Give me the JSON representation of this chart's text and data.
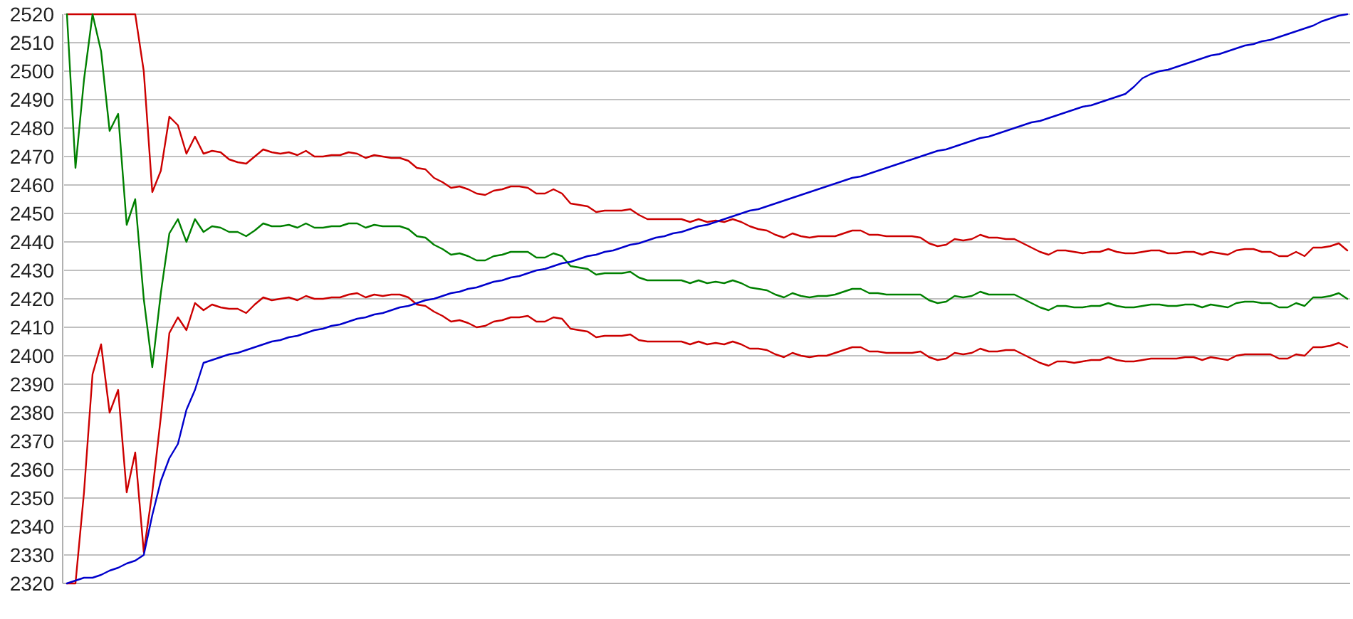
{
  "chart_data": {
    "type": "line",
    "categories": [
      null,
      null,
      null,
      null,
      null,
      null,
      null,
      null,
      null,
      null,
      null,
      null,
      null,
      null,
      null,
      null,
      null,
      null,
      null,
      null,
      null,
      null,
      null,
      null,
      null,
      null,
      null,
      null,
      null,
      null,
      null,
      null,
      null,
      null,
      null,
      null,
      null,
      null,
      null,
      null,
      null,
      null,
      null,
      null,
      null,
      null,
      null,
      null,
      null,
      null,
      null,
      null,
      null,
      null,
      null,
      null,
      null,
      null,
      null,
      null,
      null,
      null,
      null,
      null,
      null,
      null,
      null,
      null,
      null,
      null,
      null,
      null,
      null,
      null,
      null,
      null,
      null,
      null,
      null,
      null,
      null,
      null,
      null,
      null,
      null,
      null,
      null,
      null,
      null,
      null,
      null,
      null,
      null,
      null,
      null,
      null,
      null,
      null,
      null,
      null,
      null,
      null,
      null,
      null,
      null,
      null,
      null,
      null,
      null,
      null,
      null,
      null,
      null,
      null,
      null,
      null,
      null,
      null,
      null,
      null,
      null,
      null,
      null,
      null,
      null,
      null,
      null,
      null,
      null,
      null,
      null,
      null,
      null,
      null,
      null,
      null,
      null,
      null,
      null,
      null,
      null,
      null,
      null,
      null,
      null,
      null,
      null,
      null,
      null,
      null,
      null
    ],
    "series": [
      {
        "color": "#cc0000",
        "values": [
          2520,
          2520,
          2520,
          2520,
          2520,
          2520,
          2520,
          2520,
          2520,
          2500,
          2457.5,
          2465,
          2484,
          2481,
          2471,
          2477,
          2471,
          2472,
          2471.5,
          2469,
          2468,
          2467.5,
          2470,
          2472.5,
          2471.5,
          2471,
          2471.5,
          2470.5,
          2472,
          2470,
          2470,
          2470.5,
          2470.5,
          2471.5,
          2471,
          2469.5,
          2470.5,
          2470,
          2469.5,
          2469.5,
          2468.5,
          2466,
          2465.5,
          2462.5,
          2461,
          2459,
          2459.5,
          2458.5,
          2457,
          2456.5,
          2458,
          2458.5,
          2459.5,
          2459.5,
          2459,
          2457,
          2457,
          2458.5,
          2457,
          2453.5,
          2453,
          2452.5,
          2450.5,
          2451,
          2451,
          2451,
          2451.5,
          2449.5,
          2448,
          2448,
          2448,
          2448,
          2448,
          2447,
          2448,
          2447,
          2447.5,
          2447,
          2448,
          2447,
          2445.5,
          2444.5,
          2444,
          2442.5,
          2441.5,
          2443,
          2442,
          2441.5,
          2442,
          2442,
          2442,
          2443,
          2444,
          2444,
          2442.5,
          2442.5,
          2442,
          2442,
          2442,
          2442,
          2441.5,
          2439.5,
          2438.5,
          2439,
          2441,
          2440.5,
          2441,
          2442.5,
          2441.5,
          2441.5,
          2441,
          2441,
          2439.5,
          2438,
          2436.5,
          2435.5,
          2437,
          2437,
          2436.5,
          2436,
          2436.5,
          2436.5,
          2437.5,
          2436.5,
          2436,
          2436,
          2436.5,
          2437,
          2437,
          2436,
          2436,
          2436.5,
          2436.5,
          2435.5,
          2436.5,
          2436,
          2435.5,
          2437,
          2437.5,
          2437.5,
          2436.5,
          2436.5,
          2435,
          2435,
          2436.5,
          2435,
          2438,
          2438,
          2438.5,
          2439.5,
          2437
        ]
      },
      {
        "color": "#008000",
        "values": [
          2520,
          2466,
          2497,
          2520,
          2507,
          2479,
          2485,
          2446,
          2455,
          2420,
          2396,
          2422,
          2443,
          2448,
          2440,
          2448,
          2443.5,
          2445.5,
          2445,
          2443.5,
          2443.5,
          2442,
          2444,
          2446.5,
          2445.5,
          2445.5,
          2446,
          2445,
          2446.5,
          2445,
          2445,
          2445.5,
          2445.5,
          2446.5,
          2446.5,
          2445,
          2446,
          2445.5,
          2445.5,
          2445.5,
          2444.5,
          2442,
          2441.5,
          2439,
          2437.5,
          2435.5,
          2436,
          2435,
          2433.5,
          2433.5,
          2435,
          2435.5,
          2436.5,
          2436.5,
          2436.5,
          2434.5,
          2434.5,
          2436,
          2435,
          2431.5,
          2431,
          2430.5,
          2428.5,
          2429,
          2429,
          2429,
          2429.5,
          2427.5,
          2426.5,
          2426.5,
          2426.5,
          2426.5,
          2426.5,
          2425.5,
          2426.5,
          2425.5,
          2426,
          2425.5,
          2426.5,
          2425.5,
          2424,
          2423.5,
          2423,
          2421.5,
          2420.5,
          2422,
          2421,
          2420.5,
          2421,
          2421,
          2421.5,
          2422.5,
          2423.5,
          2423.5,
          2422,
          2422,
          2421.5,
          2421.5,
          2421.5,
          2421.5,
          2421.5,
          2419.5,
          2418.5,
          2419,
          2421,
          2420.5,
          2421,
          2422.5,
          2421.5,
          2421.5,
          2421.5,
          2421.5,
          2420,
          2418.5,
          2417,
          2416,
          2417.5,
          2417.5,
          2417,
          2417,
          2417.5,
          2417.5,
          2418.5,
          2417.5,
          2417,
          2417,
          2417.5,
          2418,
          2418,
          2417.5,
          2417.5,
          2418,
          2418,
          2417,
          2418,
          2417.5,
          2417,
          2418.5,
          2419,
          2419,
          2418.5,
          2418.5,
          2417,
          2417,
          2418.5,
          2417.5,
          2420.5,
          2420.5,
          2421,
          2422,
          2420
        ]
      },
      {
        "color": "#cc0000",
        "values": [
          2320,
          2320,
          2352,
          2393.5,
          2404,
          2380,
          2388,
          2352,
          2366,
          2331,
          2352,
          2378.5,
          2408,
          2413.5,
          2409,
          2418.5,
          2416,
          2418,
          2417,
          2416.5,
          2416.5,
          2415,
          2418,
          2420.5,
          2419.5,
          2420,
          2420.5,
          2419.5,
          2421,
          2420,
          2420,
          2420.5,
          2420.5,
          2421.5,
          2422,
          2420.5,
          2421.5,
          2421,
          2421.5,
          2421.5,
          2420.5,
          2418,
          2417.5,
          2415.5,
          2414,
          2412,
          2412.5,
          2411.5,
          2410,
          2410.5,
          2412,
          2412.5,
          2413.5,
          2413.5,
          2414,
          2412,
          2412,
          2413.5,
          2413,
          2409.5,
          2409,
          2408.5,
          2406.5,
          2407,
          2407,
          2407,
          2407.5,
          2405.5,
          2405,
          2405,
          2405,
          2405,
          2405,
          2404,
          2405,
          2404,
          2404.5,
          2404,
          2405,
          2404,
          2402.5,
          2402.5,
          2402,
          2400.5,
          2399.5,
          2401,
          2400,
          2399.5,
          2400,
          2400,
          2401,
          2402,
          2403,
          2403,
          2401.5,
          2401.5,
          2401,
          2401,
          2401,
          2401,
          2401.5,
          2399.5,
          2398.5,
          2399,
          2401,
          2400.5,
          2401,
          2402.5,
          2401.5,
          2401.5,
          2402,
          2402,
          2400.5,
          2399,
          2397.5,
          2396.5,
          2398,
          2398,
          2397.5,
          2398,
          2398.5,
          2398.5,
          2399.5,
          2398.5,
          2398,
          2398,
          2398.5,
          2399,
          2399,
          2399,
          2399,
          2399.5,
          2399.5,
          2398.5,
          2399.5,
          2399,
          2398.5,
          2400,
          2400.5,
          2400.5,
          2400.5,
          2400.5,
          2399,
          2399,
          2400.5,
          2400,
          2403,
          2403,
          2403.5,
          2404.5,
          2403
        ]
      },
      {
        "color": "#0000cc",
        "values": [
          2320,
          2321,
          2322,
          2322,
          2323,
          2324.5,
          2325.5,
          2327,
          2328,
          2330,
          2344,
          2356,
          2364,
          2369,
          2381,
          2388,
          2397.5,
          2398.5,
          2399.5,
          2400.5,
          2401,
          2402,
          2403,
          2404,
          2405,
          2405.5,
          2406.5,
          2407,
          2408,
          2409,
          2409.5,
          2410.5,
          2411,
          2412,
          2413,
          2413.5,
          2414.5,
          2415,
          2416,
          2417,
          2417.5,
          2418.5,
          2419.5,
          2420,
          2421,
          2422,
          2422.5,
          2423.5,
          2424,
          2425,
          2426,
          2426.5,
          2427.5,
          2428,
          2429,
          2430,
          2430.5,
          2431.5,
          2432.5,
          2433,
          2434,
          2435,
          2435.5,
          2436.5,
          2437,
          2438,
          2439,
          2439.5,
          2440.5,
          2441.5,
          2442,
          2443,
          2443.5,
          2444.5,
          2445.5,
          2446,
          2447,
          2448,
          2449,
          2450,
          2451,
          2451.5,
          2452.5,
          2453.5,
          2454.5,
          2455.5,
          2456.5,
          2457.5,
          2458.5,
          2459.5,
          2460.5,
          2461.5,
          2462.5,
          2463,
          2464,
          2465,
          2466,
          2467,
          2468,
          2469,
          2470,
          2471,
          2472,
          2472.5,
          2473.5,
          2474.5,
          2475.5,
          2476.5,
          2477,
          2478,
          2479,
          2480,
          2481,
          2482,
          2482.5,
          2483.5,
          2484.5,
          2485.5,
          2486.5,
          2487.5,
          2488,
          2489,
          2490,
          2491,
          2492,
          2494.5,
          2497.5,
          2499,
          2500,
          2500.5,
          2501.5,
          2502.5,
          2503.5,
          2504.5,
          2505.5,
          2506,
          2507,
          2508,
          2509,
          2509.5,
          2510.5,
          2511,
          2512,
          2513,
          2514,
          2515,
          2516,
          2517.5,
          2518.5,
          2519.5,
          2520
        ]
      }
    ],
    "ylim": [
      2320,
      2520
    ],
    "yticks": [
      2320,
      2330,
      2340,
      2350,
      2360,
      2370,
      2380,
      2390,
      2400,
      2410,
      2420,
      2430,
      2440,
      2450,
      2460,
      2470,
      2480,
      2490,
      2500,
      2510,
      2520
    ],
    "grid": "y",
    "tick_labels": "y"
  }
}
